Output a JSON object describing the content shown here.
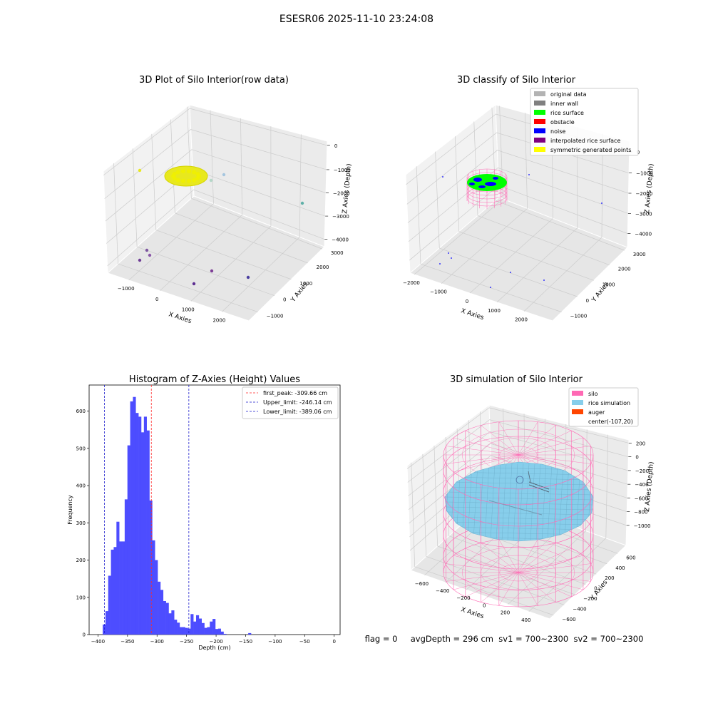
{
  "suptitle": "ESESR06 2025-11-10 23:24:08",
  "colors": {
    "hist_bar": "#4d4dff",
    "first_peak": "#ff2a2a",
    "limit": "#1f1fcc",
    "silo": "#ff69b4",
    "rice": "#87ceeb",
    "auger": "#ff4500",
    "pane": "#f2f2f2",
    "pane_dark": "#e6e6e6"
  },
  "panel_raw": {
    "title": "3D Plot of Silo Interior(row data)",
    "xlabel": "X Axies",
    "ylabel": "Y Axies",
    "zlabel": "Z Axies (Depth)",
    "x_ticks": [
      "−1000",
      "0",
      "1000",
      "2000"
    ],
    "y_ticks": [
      "−1000",
      "0",
      "1000",
      "2000",
      "3000"
    ],
    "z_ticks": [
      "0",
      "−1000",
      "−2000",
      "−3000",
      "−4000"
    ],
    "point_colors": [
      "#e8e81e",
      "#b4d7c8",
      "#a5c6df",
      "#5fb0a8",
      "#7d56a0",
      "#8957a8",
      "#6f3d96",
      "#7d3d96",
      "#5c2d91",
      "#4a3ea0"
    ]
  },
  "panel_classify": {
    "title": "3D classify of Silo Interior",
    "xlabel": "X Axies",
    "ylabel": "Y Axies",
    "zlabel": "Z Axies (Depth)",
    "x_ticks": [
      "−2000",
      "−1000",
      "0",
      "1000",
      "2000"
    ],
    "y_ticks": [
      "−1000",
      "0",
      "1000",
      "2000",
      "3000"
    ],
    "z_ticks": [
      "0",
      "−1000",
      "−2000",
      "−3000",
      "−4000"
    ],
    "legend": [
      {
        "label": "original data",
        "color": "#b3b3b3"
      },
      {
        "label": "inner wall",
        "color": "#808080"
      },
      {
        "label": "rice surface",
        "color": "#00ff00"
      },
      {
        "label": "obstacle",
        "color": "#ff0000"
      },
      {
        "label": "noise",
        "color": "#0000ff"
      },
      {
        "label": "interpolated rice surface",
        "color": "#800080"
      },
      {
        "label": "symmetric generated points",
        "color": "#ffff00"
      }
    ]
  },
  "panel_sim": {
    "title": "3D simulation of Silo Interior",
    "xlabel": "X Axies",
    "ylabel": "Y Axies",
    "zlabel": "Z Axies (Depth)",
    "x_ticks": [
      "−600",
      "−400",
      "−200",
      "0",
      "200",
      "400"
    ],
    "y_ticks": [
      "−600",
      "−400",
      "−200",
      "0",
      "200",
      "400",
      "600"
    ],
    "z_ticks": [
      "200",
      "0",
      "−200",
      "−400",
      "−600",
      "−800",
      "−1000"
    ],
    "legend": [
      {
        "label": "silo",
        "color": "#ff69b4"
      },
      {
        "label": "rice simulation",
        "color": "#87ceeb"
      },
      {
        "label": "auger",
        "color": "#ff4500"
      },
      {
        "label": "center(-107,20)",
        "color": "none"
      }
    ],
    "status_line": "flag = 0     avgDepth = 296 cm  sv1 = 700~2300  sv2 = 700~2300"
  },
  "chart_data": [
    {
      "type": "bar",
      "title": "Histogram of Z-Axies (Height) Values",
      "xlabel": "Depth (cm)",
      "ylabel": "Frequency",
      "xlim": [
        -415,
        10
      ],
      "ylim": [
        0,
        670
      ],
      "x_ticks": [
        -400,
        -350,
        -300,
        -250,
        -200,
        -150,
        -100,
        -50,
        0
      ],
      "x_tick_labels": [
        "−400",
        "−350",
        "−300",
        "−250",
        "−200",
        "−150",
        "−100",
        "−50",
        "0"
      ],
      "y_ticks": [
        0,
        100,
        200,
        300,
        400,
        500,
        600
      ],
      "y_tick_labels": [
        "0",
        "100",
        "200",
        "300",
        "400",
        "500",
        "600"
      ],
      "bin_start": -392,
      "bin_width": 4.65,
      "values": [
        27,
        63,
        158,
        228,
        235,
        303,
        250,
        250,
        363,
        508,
        626,
        638,
        595,
        585,
        543,
        585,
        548,
        360,
        253,
        200,
        142,
        120,
        90,
        85,
        57,
        65,
        40,
        32,
        20,
        20,
        18,
        16,
        55,
        35,
        52,
        43,
        31,
        18,
        20,
        35,
        42,
        15,
        16,
        8,
        2,
        0,
        0,
        0,
        0,
        0,
        0,
        0,
        0,
        4
      ],
      "vlines": [
        {
          "label": "first_peak: -309.66 cm",
          "x": -309.66,
          "color": "#ff2a2a"
        },
        {
          "label": "Upper_limit: -246.14 cm",
          "x": -246.14,
          "color": "#1f1fcc"
        },
        {
          "label": "Lower_limit: -389.06 cm",
          "x": -389.06,
          "color": "#1f1fcc"
        }
      ],
      "legend_position": "top-right"
    }
  ]
}
